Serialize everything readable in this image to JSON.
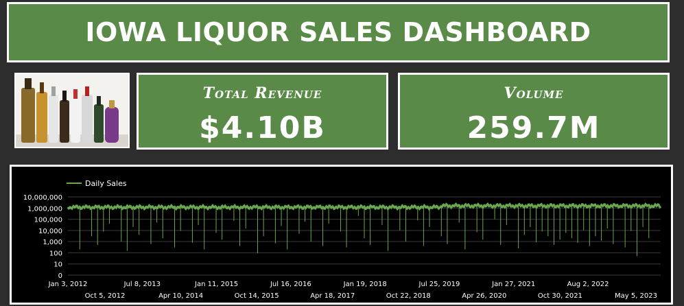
{
  "header": {
    "title": "IOWA LIQUOR SALES DASHBOARD"
  },
  "image": {
    "alt": "liquor bottles photo"
  },
  "kpis": {
    "revenue": {
      "label": "Total Revenue",
      "value": "$4.10B"
    },
    "volume": {
      "label": "Volume",
      "value": "259.7M"
    }
  },
  "colors": {
    "green": "#5a8a47",
    "series": "#6aa84f"
  },
  "chart_data": {
    "type": "line",
    "title": "",
    "xlabel": "",
    "ylabel": "",
    "yscale": "log",
    "y_ticks": [
      "10,000,000",
      "1,000,000",
      "100,000",
      "10,000",
      "1,000",
      "100",
      "10",
      "0"
    ],
    "x_ticks_row1": [
      "Jan 3, 2012",
      "Jul 8, 2013",
      "Jan 11, 2015",
      "Jul 16, 2016",
      "Jan 19, 2018",
      "Jul 25, 2019",
      "Jan 27, 2021",
      "Aug 2, 2022"
    ],
    "x_ticks_row2": [
      "Oct 5, 2012",
      "Apr 10, 2014",
      "Oct 14, 2015",
      "Apr 18, 2017",
      "Oct 22, 2018",
      "Apr 26, 2020",
      "Oct 30, 2021",
      "May 5, 2023"
    ],
    "series": [
      {
        "name": "Daily Sales",
        "typical_value": 1200000,
        "dips": [
          [
            0.02,
            200
          ],
          [
            0.04,
            3000
          ],
          [
            0.05,
            500
          ],
          [
            0.06,
            8000
          ],
          [
            0.07,
            40000
          ],
          [
            0.09,
            1000
          ],
          [
            0.1,
            150
          ],
          [
            0.11,
            20000
          ],
          [
            0.12,
            4000
          ],
          [
            0.14,
            600
          ],
          [
            0.15,
            50000
          ],
          [
            0.16,
            2000
          ],
          [
            0.18,
            300
          ],
          [
            0.19,
            9000
          ],
          [
            0.21,
            800
          ],
          [
            0.22,
            30000
          ],
          [
            0.23,
            200
          ],
          [
            0.25,
            6000
          ],
          [
            0.26,
            1500
          ],
          [
            0.28,
            70000
          ],
          [
            0.29,
            400
          ],
          [
            0.3,
            15000
          ],
          [
            0.32,
            90
          ],
          [
            0.33,
            3000
          ],
          [
            0.35,
            700
          ],
          [
            0.36,
            25000
          ],
          [
            0.37,
            200
          ],
          [
            0.39,
            5000
          ],
          [
            0.4,
            60000
          ],
          [
            0.41,
            1000
          ],
          [
            0.43,
            400
          ],
          [
            0.44,
            40000
          ],
          [
            0.46,
            8000
          ],
          [
            0.47,
            300
          ],
          [
            0.49,
            200000
          ],
          [
            0.5,
            2000
          ],
          [
            0.51,
            500
          ],
          [
            0.53,
            30000
          ],
          [
            0.54,
            150
          ],
          [
            0.56,
            10000
          ],
          [
            0.57,
            1000
          ],
          [
            0.59,
            80000
          ],
          [
            0.6,
            400
          ],
          [
            0.61,
            20000
          ],
          [
            0.63,
            3000
          ],
          [
            0.64,
            600
          ],
          [
            0.66,
            50000
          ],
          [
            0.67,
            200
          ],
          [
            0.69,
            7000
          ],
          [
            0.7,
            1500
          ],
          [
            0.72,
            100000
          ],
          [
            0.73,
            500
          ],
          [
            0.74,
            30000
          ],
          [
            0.76,
            250
          ],
          [
            0.77,
            4000
          ],
          [
            0.78,
            20000
          ],
          [
            0.79,
            900
          ],
          [
            0.8,
            8000
          ],
          [
            0.81,
            3000
          ],
          [
            0.82,
            500
          ],
          [
            0.83,
            1500
          ],
          [
            0.84,
            6000
          ],
          [
            0.85,
            2000
          ],
          [
            0.86,
            800
          ],
          [
            0.87,
            10000
          ],
          [
            0.88,
            400
          ],
          [
            0.89,
            3000
          ],
          [
            0.9,
            1200
          ],
          [
            0.91,
            15000
          ],
          [
            0.92,
            600
          ],
          [
            0.94,
            300
          ],
          [
            0.95,
            9000
          ],
          [
            0.96,
            50
          ],
          [
            0.97,
            20000
          ],
          [
            0.98,
            2000
          ]
        ]
      }
    ]
  }
}
